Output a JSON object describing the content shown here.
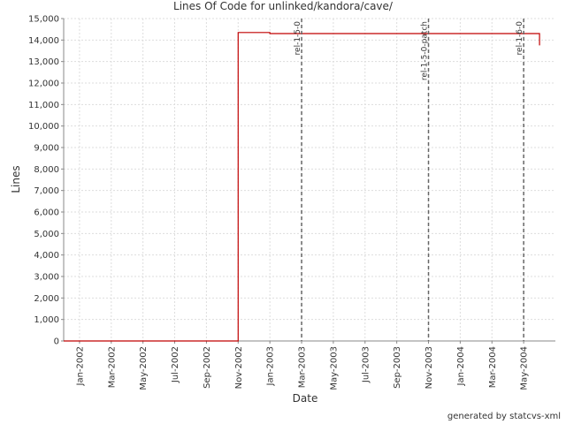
{
  "chart_data": {
    "type": "line",
    "title": "Lines Of Code for unlinked/kandora/cave/",
    "x_label": "Date",
    "y_label": "Lines",
    "footer": "generated by statcvs-xml",
    "step": true,
    "grid": true,
    "x": [
      "2001-12",
      "2002-11",
      "2003-01",
      "2004-06"
    ],
    "series": [
      {
        "name": "Lines",
        "color": "#c00000",
        "values": [
          0,
          14350,
          14300,
          13750
        ]
      }
    ],
    "xlim": [
      "2001-12",
      "2004-07"
    ],
    "xticks": [
      {
        "value": "2002-01",
        "label": "Jan-2002"
      },
      {
        "value": "2002-03",
        "label": "Mar-2002"
      },
      {
        "value": "2002-05",
        "label": "May-2002"
      },
      {
        "value": "2002-07",
        "label": "Jul-2002"
      },
      {
        "value": "2002-09",
        "label": "Sep-2002"
      },
      {
        "value": "2002-11",
        "label": "Nov-2002"
      },
      {
        "value": "2003-01",
        "label": "Jan-2003"
      },
      {
        "value": "2003-03",
        "label": "Mar-2003"
      },
      {
        "value": "2003-05",
        "label": "May-2003"
      },
      {
        "value": "2003-07",
        "label": "Jul-2003"
      },
      {
        "value": "2003-09",
        "label": "Sep-2003"
      },
      {
        "value": "2003-11",
        "label": "Nov-2003"
      },
      {
        "value": "2004-01",
        "label": "Jan-2004"
      },
      {
        "value": "2004-03",
        "label": "Mar-2004"
      },
      {
        "value": "2004-05",
        "label": "May-2004"
      }
    ],
    "ylim": [
      0,
      15000
    ],
    "yticks": [
      0,
      {
        "value": 1000,
        "label": "1,000"
      },
      {
        "value": 2000,
        "label": "2,000"
      },
      {
        "value": 3000,
        "label": "3,000"
      },
      {
        "value": 4000,
        "label": "4,000"
      },
      {
        "value": 5000,
        "label": "5,000"
      },
      {
        "value": 6000,
        "label": "6,000"
      },
      {
        "value": 7000,
        "label": "7,000"
      },
      {
        "value": 8000,
        "label": "8,000"
      },
      {
        "value": 9000,
        "label": "9,000"
      },
      {
        "value": 10000,
        "label": "10,000"
      },
      {
        "value": 11000,
        "label": "11,000"
      },
      {
        "value": 12000,
        "label": "12,000"
      },
      {
        "value": 13000,
        "label": "13,000"
      },
      {
        "value": 14000,
        "label": "14,000"
      },
      {
        "value": 15000,
        "label": "15,000"
      }
    ],
    "markers": [
      {
        "label": "rel-1-5-0",
        "x": "2003-03"
      },
      {
        "label": "rel-1-5-0-patch",
        "x": "2003-11"
      },
      {
        "label": "rel-1-6-0",
        "x": "2004-05"
      }
    ]
  }
}
